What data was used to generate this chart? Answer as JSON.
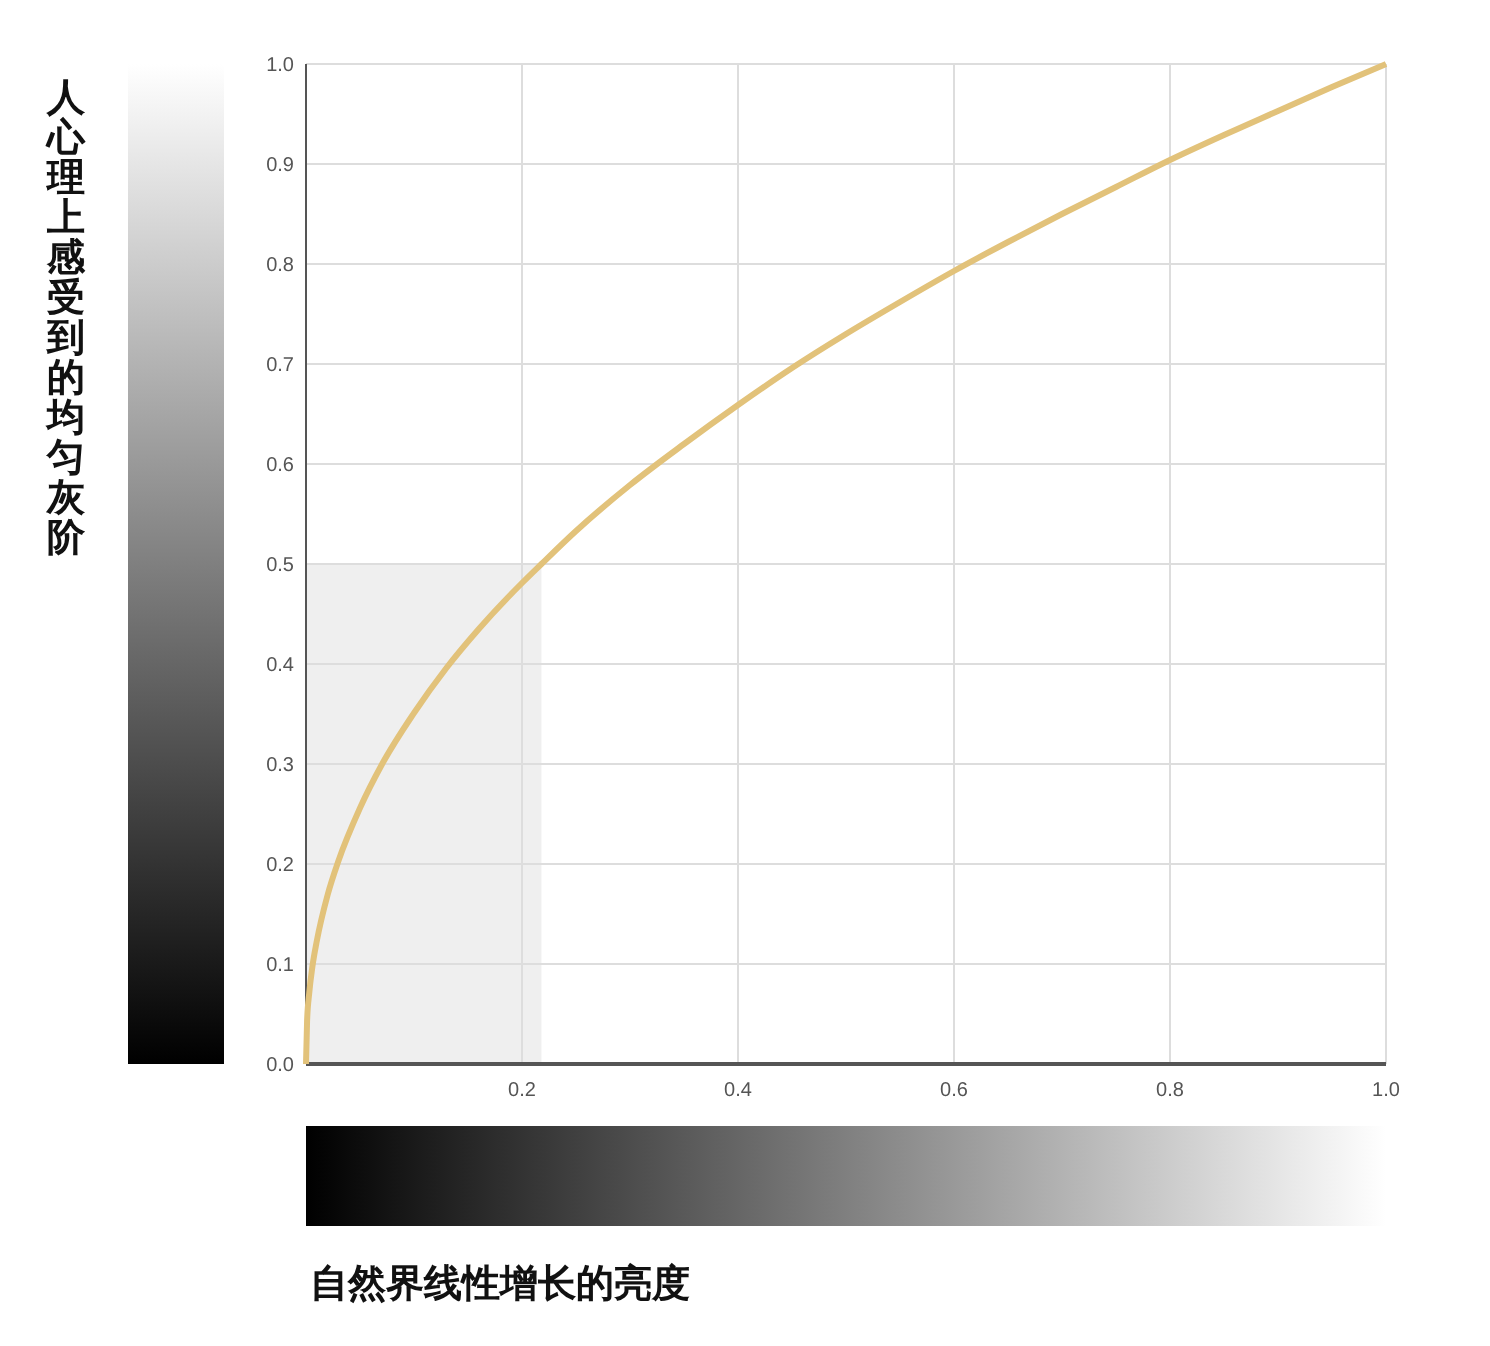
{
  "chart_data": {
    "type": "line",
    "xlabel": "自然界线性增长的亮度",
    "ylabel": "人心理上感受到的均匀灰阶",
    "x": [
      0,
      0.001,
      0.003,
      0.006,
      0.01,
      0.02,
      0.03,
      0.05,
      0.07,
      0.1,
      0.13,
      0.16,
      0.2,
      0.218,
      0.25,
      0.3,
      0.35,
      0.4,
      0.45,
      0.5,
      0.55,
      0.6,
      0.65,
      0.7,
      0.75,
      0.8,
      0.85,
      0.9,
      0.95,
      1
    ],
    "series": [
      {
        "color": "#e2c27a",
        "values": [
          0,
          0.043,
          0.071,
          0.098,
          0.123,
          0.169,
          0.203,
          0.256,
          0.299,
          0.351,
          0.396,
          0.435,
          0.481,
          0.5,
          0.533,
          0.579,
          0.62,
          0.659,
          0.696,
          0.73,
          0.762,
          0.793,
          0.822,
          0.85,
          0.877,
          0.904,
          0.929,
          0.953,
          0.977,
          1
        ]
      }
    ],
    "xlim": [
      0,
      1
    ],
    "ylim": [
      0,
      1
    ],
    "xticks": [
      {
        "value": 0,
        "label": null
      },
      {
        "value": 0.2,
        "label": "0.2"
      },
      {
        "value": 0.4,
        "label": "0.4"
      },
      {
        "value": 0.6,
        "label": "0.6"
      },
      {
        "value": 0.8,
        "label": "0.8"
      },
      {
        "value": 1,
        "label": "1.0"
      }
    ],
    "yticks": [
      {
        "value": 0,
        "label": "0.0"
      },
      {
        "value": 0.1,
        "label": "0.1"
      },
      {
        "value": 0.2,
        "label": "0.2"
      },
      {
        "value": 0.3,
        "label": "0.3"
      },
      {
        "value": 0.4,
        "label": "0.4"
      },
      {
        "value": 0.5,
        "label": "0.5"
      },
      {
        "value": 0.6,
        "label": "0.6"
      },
      {
        "value": 0.7,
        "label": "0.7"
      },
      {
        "value": 0.8,
        "label": "0.8"
      },
      {
        "value": 0.9,
        "label": "0.9"
      },
      {
        "value": 1,
        "label": "1.0"
      }
    ],
    "bands": [
      {
        "axis": "x",
        "from": 0,
        "to": 0.218,
        "color": "#efefef"
      }
    ],
    "grid": true,
    "marker": "none",
    "line_style": "solid"
  }
}
